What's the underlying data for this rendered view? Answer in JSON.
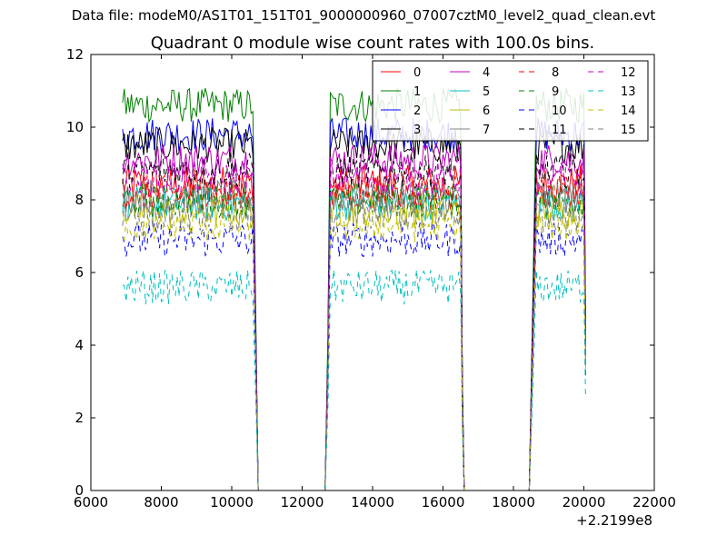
{
  "suptitle": "Data file: modeM0/AS1T01_151T01_9000000960_07007cztM0_level2_quad_clean.evt",
  "chart_data": {
    "type": "line",
    "title": "Quadrant 0 module wise count rates with 100.0s bins.",
    "xlabel": "",
    "ylabel": "",
    "x_offset_label": "+2.2199e8",
    "xlim": [
      6000,
      22000
    ],
    "ylim": [
      0,
      12
    ],
    "xticks": [
      6000,
      8000,
      10000,
      12000,
      14000,
      16000,
      18000,
      20000,
      22000
    ],
    "yticks": [
      0,
      2,
      4,
      6,
      8,
      10,
      12
    ],
    "grid": false,
    "legend": {
      "placement": "top-right",
      "columns": 4
    },
    "segments": [
      [
        6900,
        10600
      ],
      [
        12800,
        16500
      ],
      [
        18650,
        20000
      ]
    ],
    "gap_edges": [
      {
        "from": 10600,
        "to": 10750
      },
      {
        "from": 12650,
        "to": 12800
      },
      {
        "from": 16500,
        "to": 16600
      },
      {
        "from": 18450,
        "to": 18650
      }
    ],
    "series": [
      {
        "name": "0",
        "color": "#ff0000",
        "dash": "solid",
        "level": 8.4,
        "noise": 0.35
      },
      {
        "name": "1",
        "color": "#008000",
        "dash": "solid",
        "level": 10.6,
        "noise": 0.3
      },
      {
        "name": "2",
        "color": "#0000ff",
        "dash": "solid",
        "level": 9.8,
        "noise": 0.3
      },
      {
        "name": "3",
        "color": "#000000",
        "dash": "solid",
        "level": 9.5,
        "noise": 0.3
      },
      {
        "name": "4",
        "color": "#bf00bf",
        "dash": "solid",
        "level": 9.1,
        "noise": 0.3
      },
      {
        "name": "5",
        "color": "#00bfbf",
        "dash": "solid",
        "level": 7.9,
        "noise": 0.3
      },
      {
        "name": "6",
        "color": "#bfbf00",
        "dash": "solid",
        "level": 7.7,
        "noise": 0.3
      },
      {
        "name": "7",
        "color": "#808080",
        "dash": "solid",
        "level": 8.1,
        "noise": 0.3
      },
      {
        "name": "8",
        "color": "#ff0000",
        "dash": "dashed",
        "level": 8.2,
        "noise": 0.3
      },
      {
        "name": "9",
        "color": "#008000",
        "dash": "dashed",
        "level": 8.0,
        "noise": 0.3
      },
      {
        "name": "10",
        "color": "#0000ff",
        "dash": "dashed",
        "level": 6.9,
        "noise": 0.3
      },
      {
        "name": "11",
        "color": "#000000",
        "dash": "dashed",
        "level": 8.8,
        "noise": 0.3
      },
      {
        "name": "12",
        "color": "#bf00bf",
        "dash": "dashed",
        "level": 8.6,
        "noise": 0.3
      },
      {
        "name": "13",
        "color": "#00bfbf",
        "dash": "dashed",
        "level": 5.6,
        "noise": 0.3
      },
      {
        "name": "14",
        "color": "#bfbf00",
        "dash": "dashed",
        "level": 7.3,
        "noise": 0.3
      },
      {
        "name": "15",
        "color": "#808080",
        "dash": "dashed",
        "level": 7.6,
        "noise": 0.3
      }
    ]
  }
}
